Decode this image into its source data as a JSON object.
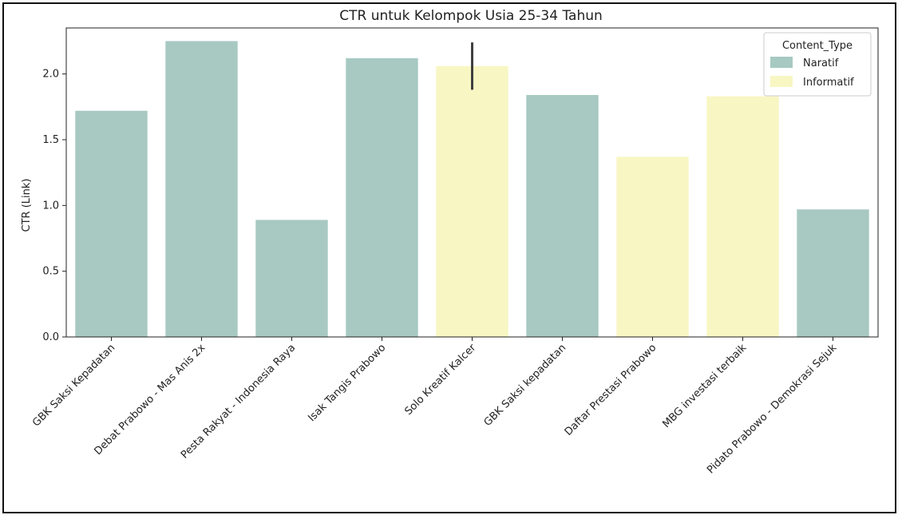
{
  "chart_data": {
    "type": "bar",
    "title": "CTR untuk Kelompok Usia 25-34 Tahun",
    "xlabel": "",
    "ylabel": "CTR (Link)",
    "ylim": [
      0,
      2.35
    ],
    "yticks": [
      "0.0",
      "0.5",
      "1.0",
      "1.5",
      "2.0"
    ],
    "grid": false,
    "legend": {
      "title": "Content_Type",
      "placement": "top-right",
      "entries": [
        {
          "label": "Naratif",
          "color": "#a7c9c2"
        },
        {
          "label": "Informatif",
          "color": "#f8f6c3"
        }
      ]
    },
    "categories": [
      "GBK Saksi Kepadatan",
      "Debat Prabowo - Mas Anis 2x",
      "Pesta Rakyat - Indonesia Raya",
      "Isak Tangis Prabowo",
      "Solo Kreatif Kalcer",
      "GBK Saksi kepadatan",
      "Daftar Prestasi Prabowo",
      "MBG investasi terbaik",
      "Pidato Prabowo - Demokrasi Sejuk"
    ],
    "values": [
      1.72,
      2.25,
      0.89,
      2.12,
      2.06,
      1.84,
      1.37,
      1.83,
      0.97
    ],
    "content_type": [
      "Naratif",
      "Naratif",
      "Naratif",
      "Naratif",
      "Informatif",
      "Naratif",
      "Informatif",
      "Informatif",
      "Naratif"
    ],
    "error_bars": [
      null,
      null,
      null,
      null,
      [
        1.88,
        2.24
      ],
      null,
      null,
      null,
      null
    ]
  }
}
